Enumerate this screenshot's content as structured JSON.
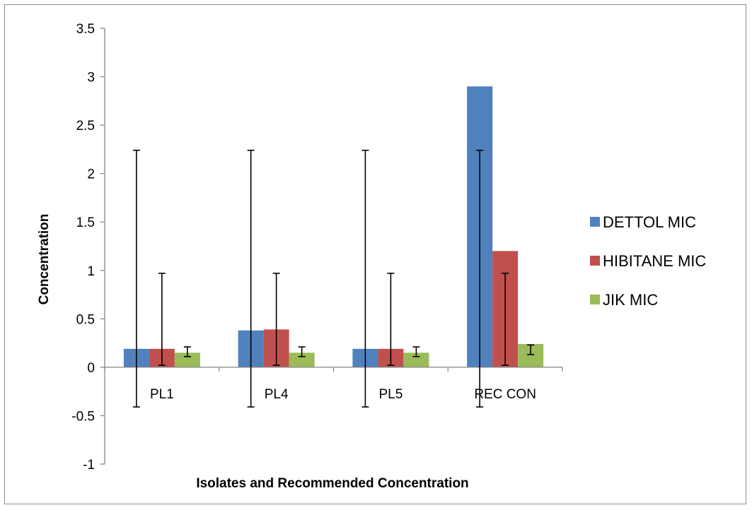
{
  "chart_data": {
    "type": "bar",
    "title": "",
    "xlabel": "Isolates and Recommended Concentration",
    "ylabel": "Concentration",
    "ylim": [
      -1,
      3.5
    ],
    "yticks": [
      3.5,
      3,
      2.5,
      2,
      1.5,
      1,
      0.5,
      0,
      -0.5,
      -1
    ],
    "ytick_labels": [
      "3.5",
      "3",
      "2.5",
      "2",
      "1.5",
      "1",
      "0.5",
      "0",
      "-0.5",
      "-1"
    ],
    "categories": [
      "PL1",
      "PL4",
      "PL5",
      "REC CON"
    ],
    "grid": false,
    "legend_position": "right",
    "series": [
      {
        "name": "DETTOL MIC",
        "color": "#4F81BD",
        "values": [
          0.19,
          0.38,
          0.19,
          2.9
        ],
        "error_bars": [
          [
            -0.41,
            2.24
          ],
          [
            -0.41,
            2.24
          ],
          [
            -0.41,
            2.24
          ],
          [
            -0.41,
            2.24
          ]
        ]
      },
      {
        "name": "HIBITANE MIC",
        "color": "#C0504D",
        "values": [
          0.19,
          0.39,
          0.19,
          1.2
        ],
        "error_bars": [
          [
            0.02,
            0.97
          ],
          [
            0.02,
            0.97
          ],
          [
            0.02,
            0.97
          ],
          [
            0.02,
            0.97
          ]
        ]
      },
      {
        "name": "JIK MIC",
        "color": "#9BBB59",
        "values": [
          0.15,
          0.15,
          0.15,
          0.24
        ],
        "error_bars": [
          [
            0.11,
            0.21
          ],
          [
            0.11,
            0.21
          ],
          [
            0.11,
            0.21
          ],
          [
            0.13,
            0.23
          ]
        ]
      }
    ]
  }
}
